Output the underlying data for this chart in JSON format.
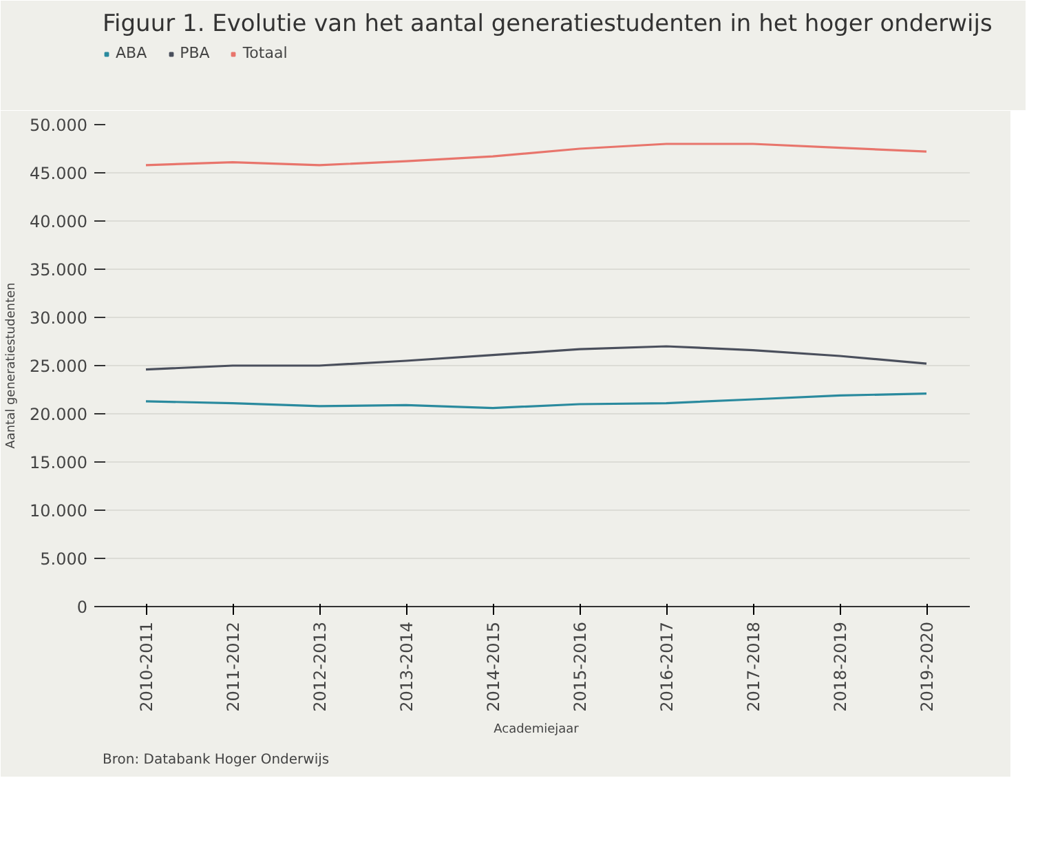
{
  "chart_data": {
    "type": "line",
    "title": "Figuur 1. Evolutie van het aantal generatiestudenten in het hoger onderwijs",
    "xlabel": "Academiejaar",
    "ylabel": "Aantal generatiestudenten",
    "categories": [
      "2010-2011",
      "2011-2012",
      "2012-2013",
      "2013-2014",
      "2014-2015",
      "2015-2016",
      "2016-2017",
      "2017-2018",
      "2018-2019",
      "2019-2020"
    ],
    "series": [
      {
        "name": "ABA",
        "color": "#2a8a9e",
        "values": [
          21300,
          21100,
          20800,
          20900,
          20600,
          21000,
          21100,
          21500,
          21900,
          22100
        ]
      },
      {
        "name": "PBA",
        "color": "#4a4f5c",
        "values": [
          24600,
          25000,
          25000,
          25500,
          26100,
          26700,
          27000,
          26600,
          26000,
          25200
        ]
      },
      {
        "name": "Totaal",
        "color": "#e8756c",
        "values": [
          45800,
          46100,
          45800,
          46200,
          46700,
          47500,
          48000,
          48000,
          47600,
          47200
        ]
      }
    ],
    "ylim": [
      0,
      50000
    ],
    "yticks": [
      0,
      {
        "value": 5000,
        "label": "5.000"
      },
      {
        "value": 10000,
        "label": "10.000"
      },
      {
        "value": 15000,
        "label": "15.000"
      },
      {
        "value": 20000,
        "label": "20.000"
      },
      {
        "value": 25000,
        "label": "25.000"
      },
      {
        "value": 30000,
        "label": "30.000"
      },
      {
        "value": 35000,
        "label": "35.000"
      },
      {
        "value": 40000,
        "label": "40.000"
      },
      {
        "value": 45000,
        "label": "45.000"
      },
      {
        "value": 50000,
        "label": "50.000"
      }
    ],
    "grid": "y",
    "legend": "top left",
    "marker": "none",
    "line_style": "solid",
    "annotations": [
      "Bron: Databank Hoger Onderwijs"
    ]
  }
}
